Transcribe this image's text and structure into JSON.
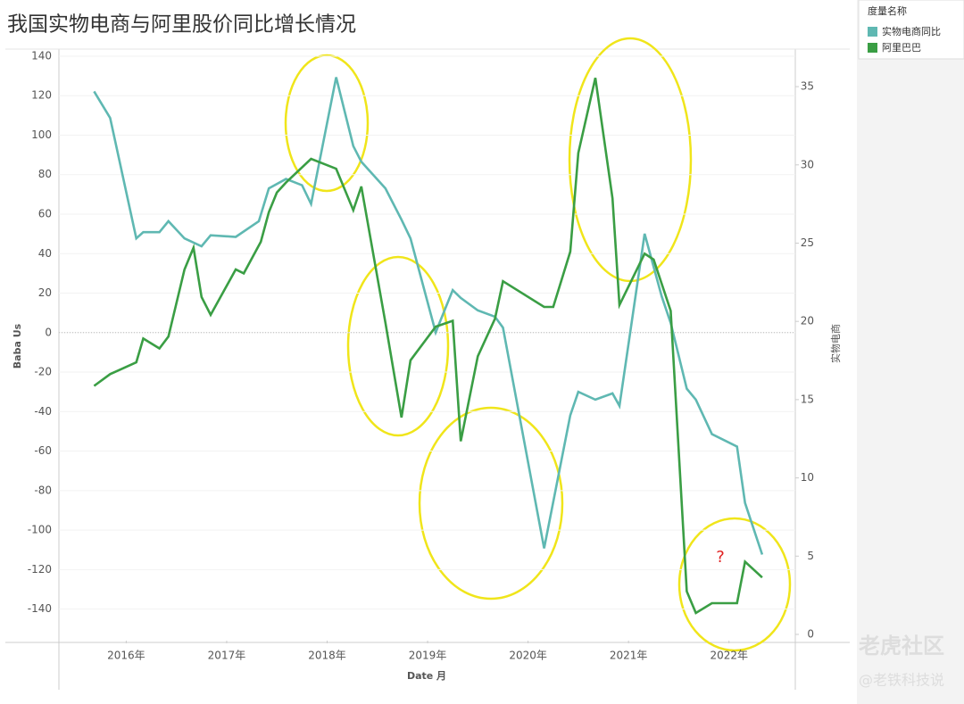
{
  "chart_data": {
    "type": "line",
    "title": "我国实物电商与阿里股价同比增长情况",
    "xlabel": "Date 月",
    "ylabel": "Baba Us",
    "y2label": "实物电商",
    "legend_title": "度量名称",
    "xlim": [
      2015.83,
      2023.16
    ],
    "xticks": [
      {
        "value": 2016.5,
        "label": "2016年"
      },
      {
        "value": 2017.5,
        "label": "2017年"
      },
      {
        "value": 2018.5,
        "label": "2018年"
      },
      {
        "value": 2019.5,
        "label": "2019年"
      },
      {
        "value": 2020.5,
        "label": "2020年"
      },
      {
        "value": 2021.5,
        "label": "2021年"
      },
      {
        "value": 2022.5,
        "label": "2022年"
      }
    ],
    "ylim": [
      -156,
      143.6
    ],
    "yticks": [
      140,
      120,
      100,
      80,
      60,
      40,
      20,
      0,
      -20,
      -40,
      -60,
      -80,
      -100,
      -120,
      -140
    ],
    "y2lim": [
      -0.4,
      37.4
    ],
    "y2ticks": [
      0,
      5,
      10,
      15,
      20,
      25,
      30,
      35
    ],
    "grid": true,
    "series": [
      {
        "name": "实物电商同比",
        "color": "#5fb8b2",
        "axis": "y2",
        "x": [
          2016.18,
          2016.34,
          2016.6,
          2016.67,
          2016.83,
          2016.92,
          2017.08,
          2017.25,
          2017.34,
          2017.59,
          2017.82,
          2017.92,
          2018.09,
          2018.25,
          2018.34,
          2018.59,
          2018.76,
          2018.84,
          2019.08,
          2019.24,
          2019.33,
          2019.58,
          2019.75,
          2019.83,
          2020.0,
          2020.17,
          2020.25,
          2020.66,
          2020.92,
          2021.0,
          2021.17,
          2021.34,
          2021.41,
          2021.66,
          2021.83,
          2021.92,
          2022.08,
          2022.17,
          2022.33,
          2022.58,
          2022.66,
          2022.83
        ],
        "values": [
          34.7,
          33.0,
          25.3,
          25.7,
          25.7,
          26.4,
          25.3,
          24.8,
          25.5,
          25.4,
          26.4,
          28.5,
          29.1,
          28.7,
          27.5,
          35.6,
          31.2,
          30.2,
          28.5,
          26.5,
          25.3,
          19.3,
          22.0,
          21.5,
          20.7,
          20.3,
          19.6,
          5.5,
          14.0,
          15.5,
          15.0,
          15.4,
          14.6,
          25.6,
          21.6,
          19.9,
          15.7,
          15.0,
          12.8,
          12.0,
          8.4,
          5.1
        ]
      },
      {
        "name": "阿里巴巴",
        "color": "#3a9e44",
        "x": [
          2016.18,
          2016.34,
          2016.6,
          2016.67,
          2016.83,
          2016.92,
          2017.08,
          2017.17,
          2017.25,
          2017.34,
          2017.59,
          2017.67,
          2017.84,
          2017.92,
          2018.0,
          2018.09,
          2018.34,
          2018.59,
          2018.76,
          2018.84,
          2019.08,
          2019.24,
          2019.33,
          2019.58,
          2019.75,
          2019.83,
          2020.0,
          2020.17,
          2020.25,
          2020.66,
          2020.75,
          2020.92,
          2021.0,
          2021.17,
          2021.34,
          2021.41,
          2021.66,
          2021.75,
          2021.92,
          2022.08,
          2022.17,
          2022.33,
          2022.58,
          2022.66,
          2022.83
        ],
        "values": [
          -27,
          -21,
          -15,
          -3,
          -8,
          -2,
          32,
          43,
          18,
          9,
          32,
          30,
          46,
          61,
          71,
          76,
          88,
          83,
          62,
          74,
          5,
          -43,
          -14,
          3,
          6,
          -55,
          -12,
          7,
          26,
          13,
          13,
          41,
          91,
          129,
          68,
          14,
          40,
          37,
          11,
          -131,
          -142,
          -137,
          -137,
          -116,
          -124
        ]
      }
    ],
    "annotations": [
      "?"
    ],
    "watermarks": [
      "老虎社区",
      "@老铁科技说"
    ]
  }
}
